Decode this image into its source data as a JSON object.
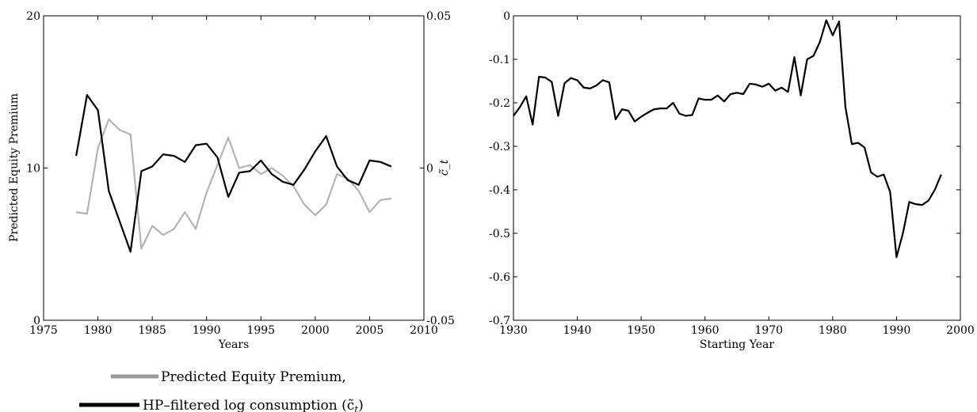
{
  "chart_data": [
    {
      "type": "line",
      "title": "",
      "xlabel": "Years",
      "ylabel": "Predicted Equity Premium",
      "y2label": "c̃_t",
      "xlim": [
        1975,
        2010
      ],
      "ylim": [
        0,
        20
      ],
      "y2lim": [
        -0.05,
        0.05
      ],
      "x_ticks": [
        "1975",
        "1980",
        "1985",
        "1990",
        "1995",
        "2000",
        "2005",
        "2010"
      ],
      "y_ticks": [
        "0",
        "10",
        "20"
      ],
      "y2_ticks": [
        "-0.05",
        "0",
        "0.05"
      ],
      "grid": false,
      "legend_position": "bottom",
      "series": [
        {
          "name": "Predicted Equity Premium,",
          "axis": "left",
          "color": "#b4b4b4",
          "x": [
            1978,
            1979,
            1980,
            1981,
            1982,
            1983,
            1984,
            1985,
            1986,
            1987,
            1988,
            1989,
            1990,
            1991,
            1992,
            1993,
            1994,
            1995,
            1996,
            1997,
            1998,
            1999,
            2000,
            2001,
            2002,
            2003,
            2004,
            2005,
            2006,
            2007
          ],
          "y": [
            7.1,
            7.0,
            11.3,
            13.2,
            12.5,
            12.2,
            4.7,
            6.2,
            5.6,
            6.0,
            7.1,
            6.0,
            8.4,
            10.2,
            12.0,
            10.0,
            10.2,
            9.6,
            10.0,
            9.5,
            8.8,
            7.6,
            6.9,
            7.6,
            9.6,
            9.3,
            8.5,
            7.1,
            7.9,
            8.0
          ]
        },
        {
          "name": "HP–filtered log consumption (c̃_t)",
          "axis": "right",
          "color": "#000000",
          "x": [
            1978,
            1979,
            1980,
            1981,
            1982,
            1983,
            1984,
            1985,
            1986,
            1987,
            1988,
            1989,
            1990,
            1991,
            1992,
            1993,
            1994,
            1995,
            1996,
            1997,
            1998,
            1999,
            2000,
            2001,
            2002,
            2003,
            2004,
            2005,
            2006,
            2007
          ],
          "y": [
            0.004,
            0.024,
            0.019,
            -0.0075,
            -0.0175,
            -0.0275,
            -0.001,
            0.0005,
            0.0045,
            0.004,
            0.002,
            0.0075,
            0.008,
            0.0035,
            -0.0095,
            -0.0015,
            -0.001,
            0.0025,
            -0.002,
            -0.0045,
            -0.0055,
            -0.0005,
            0.0055,
            0.0105,
            0.0005,
            -0.004,
            -0.0055,
            0.0025,
            0.002,
            0.0005
          ]
        }
      ]
    },
    {
      "type": "line",
      "title": "",
      "xlabel": "Starting Year",
      "ylabel": "",
      "xlim": [
        1930,
        2000
      ],
      "ylim": [
        -0.7,
        0
      ],
      "x_ticks": [
        "1930",
        "1940",
        "1950",
        "1960",
        "1970",
        "1980",
        "1990",
        "2000"
      ],
      "y_ticks": [
        "-0.7",
        "-0.6",
        "-0.5",
        "-0.4",
        "-0.3",
        "-0.2",
        "-0.1",
        "0"
      ],
      "grid": false,
      "series": [
        {
          "color": "#000000",
          "x": [
            1930,
            1931,
            1932,
            1933,
            1934,
            1935,
            1936,
            1937,
            1938,
            1939,
            1940,
            1941,
            1942,
            1943,
            1944,
            1945,
            1946,
            1947,
            1948,
            1949,
            1950,
            1951,
            1952,
            1953,
            1954,
            1955,
            1956,
            1957,
            1958,
            1959,
            1960,
            1961,
            1962,
            1963,
            1964,
            1965,
            1966,
            1967,
            1968,
            1969,
            1970,
            1971,
            1972,
            1973,
            1974,
            1975,
            1976,
            1977,
            1978,
            1979,
            1980,
            1981,
            1982,
            1983,
            1984,
            1985,
            1986,
            1987,
            1988,
            1989,
            1990,
            1991,
            1992,
            1993,
            1994,
            1995,
            1996,
            1997
          ],
          "y": [
            -0.23,
            -0.21,
            -0.185,
            -0.25,
            -0.14,
            -0.142,
            -0.152,
            -0.23,
            -0.155,
            -0.143,
            -0.148,
            -0.165,
            -0.167,
            -0.16,
            -0.148,
            -0.153,
            -0.238,
            -0.215,
            -0.218,
            -0.243,
            -0.232,
            -0.223,
            -0.215,
            -0.213,
            -0.213,
            -0.2,
            -0.225,
            -0.23,
            -0.228,
            -0.19,
            -0.193,
            -0.193,
            -0.183,
            -0.197,
            -0.18,
            -0.177,
            -0.18,
            -0.156,
            -0.158,
            -0.163,
            -0.156,
            -0.172,
            -0.165,
            -0.175,
            -0.095,
            -0.183,
            -0.1,
            -0.092,
            -0.06,
            -0.01,
            -0.045,
            -0.013,
            -0.21,
            -0.295,
            -0.292,
            -0.303,
            -0.36,
            -0.37,
            -0.365,
            -0.405,
            -0.555,
            -0.5,
            -0.428,
            -0.433,
            -0.435,
            -0.425,
            -0.4,
            -0.365
          ]
        }
      ]
    }
  ],
  "legend": {
    "items": [
      {
        "label": "Predicted Equity Premium,",
        "color": "#999999"
      },
      {
        "label": "HP–filtered log consumption (c̃",
        "sub": "t",
        "suffix": ")",
        "color": "#000000"
      }
    ]
  }
}
